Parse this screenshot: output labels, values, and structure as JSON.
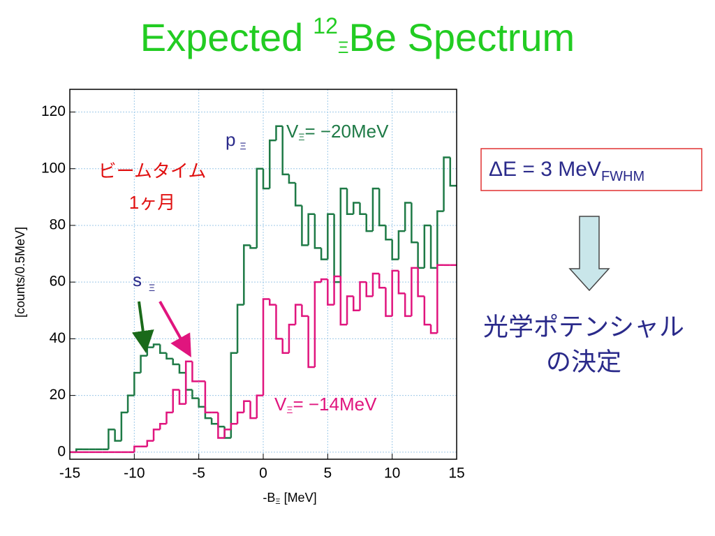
{
  "chart_data": {
    "type": "histogram",
    "title": {
      "prefix": "Expected",
      "mass": "12",
      "hyperon": "Ξ",
      "nucleus": "Be Spectrum"
    },
    "xlabel": {
      "main": "-B",
      "sub": "Ξ",
      "unit": "[MeV]"
    },
    "ylabel": "[counts/0.5MeV]",
    "xlim": [
      -15,
      15
    ],
    "ylim": [
      -2.5,
      128
    ],
    "xticks": [
      -15,
      -10,
      -5,
      0,
      5,
      10,
      15
    ],
    "yticks": [
      0,
      20,
      40,
      60,
      80,
      100,
      120
    ],
    "grid": true,
    "bins": [
      -15,
      -14.5,
      -14,
      -13.5,
      -13,
      -12.5,
      -12,
      -11.5,
      -11,
      -10.5,
      -10,
      -9.5,
      -9,
      -8.5,
      -8,
      -7.5,
      -7,
      -6.5,
      -6,
      -5.5,
      -5,
      -4.5,
      -4,
      -3.5,
      -3,
      -2.5,
      -2,
      -1.5,
      -1,
      -0.5,
      0,
      0.5,
      1,
      1.5,
      2,
      2.5,
      3,
      3.5,
      4,
      4.5,
      5,
      5.5,
      6,
      6.5,
      7,
      7.5,
      8,
      8.5,
      9,
      9.5,
      10,
      10.5,
      11,
      11.5,
      12,
      12.5,
      13,
      13.5,
      14,
      14.5,
      15
    ],
    "series": [
      {
        "label": {
          "main": "V",
          "sub": "Ξ",
          "rest": "= −20MeV"
        },
        "color": "#1e7a46",
        "values": [
          0,
          1,
          1,
          1,
          1,
          1,
          8,
          4,
          14,
          20,
          28,
          34,
          37,
          38,
          35,
          33,
          31,
          28,
          22,
          19,
          16,
          12,
          10,
          9,
          5,
          35,
          52,
          73,
          72,
          100,
          93,
          110,
          115,
          98,
          95,
          87,
          73,
          84,
          72,
          68,
          84,
          60,
          93,
          84,
          88,
          84,
          78,
          93,
          80,
          75,
          68,
          78,
          88,
          74,
          65,
          80,
          65,
          85,
          104,
          94
        ]
      },
      {
        "label": {
          "main": "V",
          "sub": "Ξ",
          "rest": "= −14MeV"
        },
        "color": "#e0157e",
        "values": [
          0,
          0,
          0,
          0,
          0,
          0,
          0,
          0,
          0,
          0,
          2,
          2,
          4,
          8,
          10,
          14,
          22,
          17,
          32,
          25,
          25,
          14,
          14,
          5,
          8,
          10,
          14,
          18,
          12,
          20,
          54,
          52,
          40,
          35,
          45,
          52,
          48,
          30,
          60,
          61,
          52,
          62,
          45,
          55,
          50,
          60,
          55,
          63,
          58,
          48,
          64,
          56,
          48,
          65,
          55,
          45,
          42,
          66,
          66,
          66
        ]
      }
    ],
    "annotations": {
      "p_state": {
        "main": "p",
        "sub": "Ξ"
      },
      "s_state": {
        "main": "s",
        "sub": "Ξ"
      },
      "beam_time": [
        "ビームタイム",
        "1ヶ月"
      ]
    },
    "resolution": {
      "main": "ΔE = 3 MeV",
      "sub": "FWHM"
    },
    "conclusion": [
      "光学ポテンシャル",
      "の決定"
    ]
  }
}
